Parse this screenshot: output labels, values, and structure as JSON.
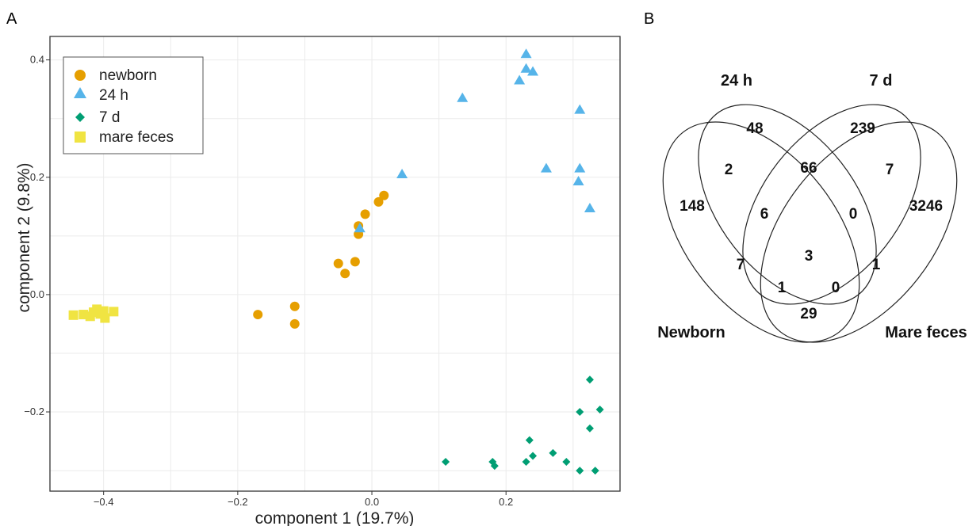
{
  "panel_a": {
    "letter": "A"
  },
  "panel_b": {
    "letter": "B"
  },
  "chart_data": [
    {
      "type": "scatter",
      "title": "",
      "xlabel": "component 1 (19.7%)",
      "ylabel": "component 2 (9.8%)",
      "xlim": [
        -0.48,
        0.37
      ],
      "ylim": [
        -0.335,
        0.44
      ],
      "xticks": [
        -0.4,
        -0.2,
        0.0,
        0.2
      ],
      "xtick_labels": [
        "−0.4",
        "−0.2",
        "0.0",
        "0.2"
      ],
      "yticks": [
        -0.2,
        0.0,
        0.2,
        0.4
      ],
      "ytick_labels": [
        "−0.2",
        "0.0",
        "0.2",
        "0.4"
      ],
      "grid": true,
      "legend_position": "top-left",
      "series": [
        {
          "name": "newborn",
          "marker": "circle",
          "color": "#E69F00",
          "points": [
            {
              "x": 0.018,
              "y": 0.169
            },
            {
              "x": 0.01,
              "y": 0.158
            },
            {
              "x": -0.01,
              "y": 0.137
            },
            {
              "x": -0.02,
              "y": 0.117
            },
            {
              "x": -0.02,
              "y": 0.103
            },
            {
              "x": -0.025,
              "y": 0.056
            },
            {
              "x": -0.05,
              "y": 0.053
            },
            {
              "x": -0.04,
              "y": 0.036
            },
            {
              "x": -0.115,
              "y": -0.02
            },
            {
              "x": -0.115,
              "y": -0.05
            },
            {
              "x": -0.17,
              "y": -0.034
            }
          ]
        },
        {
          "name": "24 h",
          "marker": "triangle",
          "color": "#56B4E9",
          "points": [
            {
              "x": 0.23,
              "y": 0.41
            },
            {
              "x": 0.23,
              "y": 0.385
            },
            {
              "x": 0.24,
              "y": 0.38
            },
            {
              "x": 0.22,
              "y": 0.365
            },
            {
              "x": 0.135,
              "y": 0.335
            },
            {
              "x": 0.31,
              "y": 0.315
            },
            {
              "x": 0.26,
              "y": 0.215
            },
            {
              "x": 0.31,
              "y": 0.215
            },
            {
              "x": 0.045,
              "y": 0.205
            },
            {
              "x": 0.308,
              "y": 0.193
            },
            {
              "x": 0.325,
              "y": 0.147
            },
            {
              "x": -0.018,
              "y": 0.113
            }
          ]
        },
        {
          "name": "7 d",
          "marker": "diamond",
          "color": "#009E73",
          "points": [
            {
              "x": 0.325,
              "y": -0.145
            },
            {
              "x": 0.34,
              "y": -0.196
            },
            {
              "x": 0.31,
              "y": -0.2
            },
            {
              "x": 0.325,
              "y": -0.228
            },
            {
              "x": 0.235,
              "y": -0.248
            },
            {
              "x": 0.27,
              "y": -0.27
            },
            {
              "x": 0.24,
              "y": -0.275
            },
            {
              "x": 0.11,
              "y": -0.285
            },
            {
              "x": 0.18,
              "y": -0.285
            },
            {
              "x": 0.23,
              "y": -0.285
            },
            {
              "x": 0.29,
              "y": -0.285
            },
            {
              "x": 0.183,
              "y": -0.292
            },
            {
              "x": 0.31,
              "y": -0.3
            },
            {
              "x": 0.333,
              "y": -0.3
            }
          ]
        },
        {
          "name": "mare feces",
          "marker": "square",
          "color": "#F0E442",
          "points": [
            {
              "x": -0.445,
              "y": -0.035
            },
            {
              "x": -0.43,
              "y": -0.034
            },
            {
              "x": -0.42,
              "y": -0.037
            },
            {
              "x": -0.415,
              "y": -0.03
            },
            {
              "x": -0.41,
              "y": -0.025
            },
            {
              "x": -0.405,
              "y": -0.033
            },
            {
              "x": -0.4,
              "y": -0.028
            },
            {
              "x": -0.398,
              "y": -0.04
            },
            {
              "x": -0.385,
              "y": -0.029
            }
          ]
        }
      ]
    },
    {
      "type": "venn",
      "sets": [
        "24 h",
        "7 d",
        "Newborn",
        "Mare feces"
      ],
      "regions": {
        "24h_only": 48,
        "7d_only": 239,
        "newborn_only": 148,
        "mare_only": 3246,
        "24h_newborn": 2,
        "24h_7d": 66,
        "7d_mare": 7,
        "24h_7d_newborn": 6,
        "24h_7d_mare": 0,
        "all_four": 3,
        "24h_newborn_mare": 7,
        "7d_newborn_mare": 1,
        "24h_mare": 1,
        "7d_newborn": 0,
        "newborn_mare": 29
      }
    }
  ]
}
